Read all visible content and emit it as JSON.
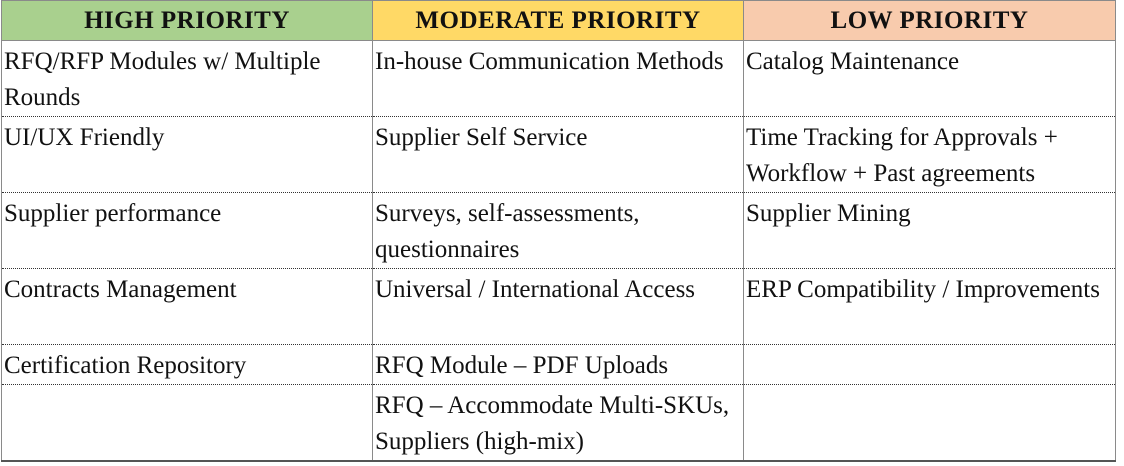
{
  "headers": {
    "high": "HIGH PRIORITY",
    "moderate": "MODERATE PRIORITY",
    "low": "LOW PRIORITY"
  },
  "colors": {
    "high_header": "#a9d08e",
    "moderate_header": "#ffd966",
    "low_header": "#f8cbad"
  },
  "rows": [
    {
      "high": "RFQ/RFP Modules w/ Multiple Rounds",
      "moderate": "In-house Communication Methods",
      "low": "Catalog Maintenance"
    },
    {
      "high": "UI/UX Friendly",
      "moderate": "Supplier Self Service",
      "low": "Time Tracking for Approvals + Workflow + Past agreements"
    },
    {
      "high": "Supplier performance",
      "moderate": "Surveys, self-assessments, questionnaires",
      "low": "Supplier Mining"
    },
    {
      "high": "Contracts Management",
      "moderate": "Universal / International Access",
      "low": "ERP Compatibility / Improvements"
    },
    {
      "high": "Certification Repository",
      "moderate": "RFQ Module – PDF Uploads",
      "low": ""
    },
    {
      "high": "",
      "moderate": "RFQ – Accommodate Multi-SKUs, Suppliers (high-mix)",
      "low": ""
    }
  ]
}
